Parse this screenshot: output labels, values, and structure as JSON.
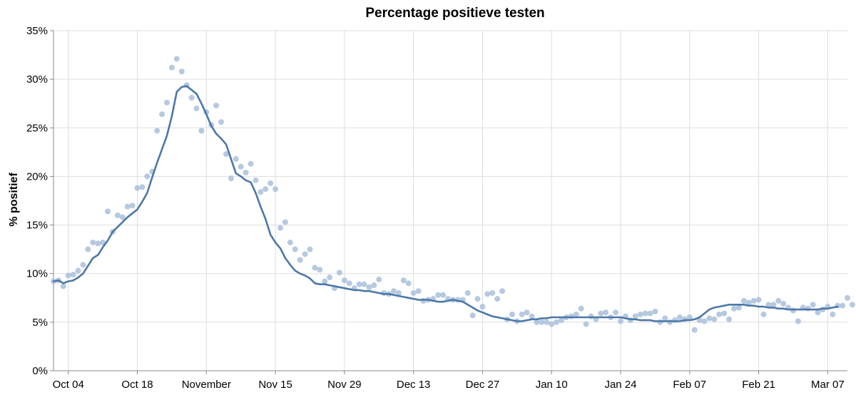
{
  "chart_data": {
    "type": "line",
    "title": "Percentage positieve testen",
    "xlabel": "",
    "ylabel": "% positief",
    "ylim": [
      0,
      35
    ],
    "yticks": [
      0,
      5,
      10,
      15,
      20,
      25,
      30,
      35
    ],
    "ytick_labels": [
      "0%",
      "5%",
      "10%",
      "15%",
      "20%",
      "25%",
      "30%",
      "35%"
    ],
    "xlim": [
      "2020-10-01",
      "2021-03-11"
    ],
    "xticks": [
      {
        "date": "2020-10-04",
        "label": "Oct 04"
      },
      {
        "date": "2020-10-18",
        "label": "Oct 18"
      },
      {
        "date": "2020-11-01",
        "label": "November"
      },
      {
        "date": "2020-11-15",
        "label": "Nov 15"
      },
      {
        "date": "2020-11-29",
        "label": "Nov 29"
      },
      {
        "date": "2020-12-13",
        "label": "Dec 13"
      },
      {
        "date": "2020-12-27",
        "label": "Dec 27"
      },
      {
        "date": "2021-01-10",
        "label": "Jan 10"
      },
      {
        "date": "2021-01-24",
        "label": "Jan 24"
      },
      {
        "date": "2021-02-07",
        "label": "Feb 07"
      },
      {
        "date": "2021-02-21",
        "label": "Feb 21"
      },
      {
        "date": "2021-03-07",
        "label": "Mar 07"
      }
    ],
    "grid": true,
    "colors": {
      "line": "#4c78a8",
      "points": "#a9bfda"
    },
    "series": [
      {
        "type": "scatter",
        "start": "2020-10-01",
        "values": [
          9.2,
          9.3,
          8.7,
          9.8,
          9.9,
          10.3,
          10.9,
          12.5,
          13.2,
          13.1,
          13.2,
          16.4,
          14.3,
          16.0,
          15.8,
          16.9,
          17.0,
          18.8,
          18.9,
          20.0,
          20.5,
          24.7,
          26.4,
          27.6,
          31.2,
          32.1,
          30.8,
          29.4,
          28.1,
          27.0,
          24.7,
          26.6,
          25.3,
          27.3,
          25.6,
          22.3,
          19.8,
          21.8,
          21.0,
          20.4,
          21.3,
          19.6,
          18.4,
          18.7,
          19.3,
          18.7,
          14.7,
          15.3,
          13.2,
          12.5,
          11.4,
          12.0,
          12.5,
          10.6,
          10.4,
          9.2,
          9.6,
          8.5,
          10.1,
          9.3,
          9.0,
          8.5,
          8.9,
          8.9,
          8.6,
          8.8,
          9.4,
          8.0,
          7.9,
          8.2,
          8.0,
          9.3,
          9.0,
          8.0,
          8.2,
          7.2,
          7.3,
          7.4,
          7.8,
          7.8,
          7.4,
          7.3,
          7.3,
          7.3,
          8.0,
          5.7,
          7.4,
          6.6,
          7.9,
          8.0,
          7.4,
          8.2,
          5.3,
          5.8,
          5.1,
          5.8,
          6.0,
          5.6,
          5.0,
          5.0,
          5.0,
          4.8,
          5.0,
          5.2,
          5.5,
          5.6,
          5.8,
          6.4,
          4.8,
          5.6,
          5.3,
          5.9,
          6.0,
          5.5,
          6.0,
          5.1,
          5.6,
          5.2,
          5.6,
          5.8,
          5.9,
          5.9,
          6.1,
          5.0,
          5.4,
          5.0,
          5.2,
          5.5,
          5.3,
          5.5,
          4.2,
          5.2,
          5.1,
          5.4,
          5.3,
          5.8,
          5.9,
          5.3,
          6.4,
          6.5,
          7.2,
          7.0,
          7.2,
          7.3,
          5.8,
          6.8,
          6.8,
          7.2,
          6.9,
          6.5,
          6.2,
          5.1,
          6.5,
          6.4,
          6.8,
          6.0,
          6.3,
          6.6,
          5.8,
          6.7,
          6.7,
          7.5,
          6.8
        ]
      },
      {
        "type": "line",
        "start": "2020-10-01",
        "values": [
          9.2,
          9.3,
          9.0,
          9.2,
          9.3,
          9.6,
          10.0,
          10.8,
          11.6,
          11.9,
          12.7,
          13.4,
          14.3,
          14.8,
          15.3,
          15.8,
          16.2,
          16.6,
          17.4,
          18.3,
          19.9,
          21.4,
          22.8,
          24.2,
          26.2,
          28.7,
          29.2,
          29.3,
          28.9,
          28.5,
          27.5,
          26.4,
          25.2,
          24.4,
          23.9,
          23.3,
          21.8,
          20.3,
          20.0,
          19.6,
          19.4,
          18.3,
          16.9,
          15.6,
          14.0,
          13.2,
          12.6,
          11.6,
          10.9,
          10.3,
          10.0,
          9.8,
          9.5,
          9.0,
          8.9,
          8.9,
          8.8,
          8.7,
          8.6,
          8.5,
          8.4,
          8.3,
          8.3,
          8.2,
          8.2,
          8.1,
          8.0,
          7.9,
          7.9,
          7.8,
          7.7,
          7.6,
          7.5,
          7.4,
          7.3,
          7.3,
          7.3,
          7.2,
          7.1,
          7.1,
          7.2,
          7.3,
          7.2,
          7.1,
          6.8,
          6.5,
          6.2,
          6.0,
          5.8,
          5.6,
          5.5,
          5.4,
          5.3,
          5.2,
          5.1,
          5.1,
          5.2,
          5.3,
          5.3,
          5.4,
          5.4,
          5.5,
          5.5,
          5.5,
          5.5,
          5.5,
          5.5,
          5.5,
          5.5,
          5.5,
          5.5,
          5.5,
          5.5,
          5.5,
          5.5,
          5.5,
          5.4,
          5.3,
          5.3,
          5.2,
          5.2,
          5.2,
          5.1,
          5.1,
          5.1,
          5.1,
          5.1,
          5.1,
          5.2,
          5.2,
          5.3,
          5.5,
          5.9,
          6.3,
          6.5,
          6.6,
          6.7,
          6.8,
          6.8,
          6.8,
          6.8,
          6.7,
          6.7,
          6.6,
          6.6,
          6.5,
          6.5,
          6.4,
          6.4,
          6.3,
          6.3,
          6.3,
          6.3,
          6.3,
          6.3,
          6.3,
          6.4,
          6.4,
          6.5,
          6.6
        ]
      }
    ]
  }
}
